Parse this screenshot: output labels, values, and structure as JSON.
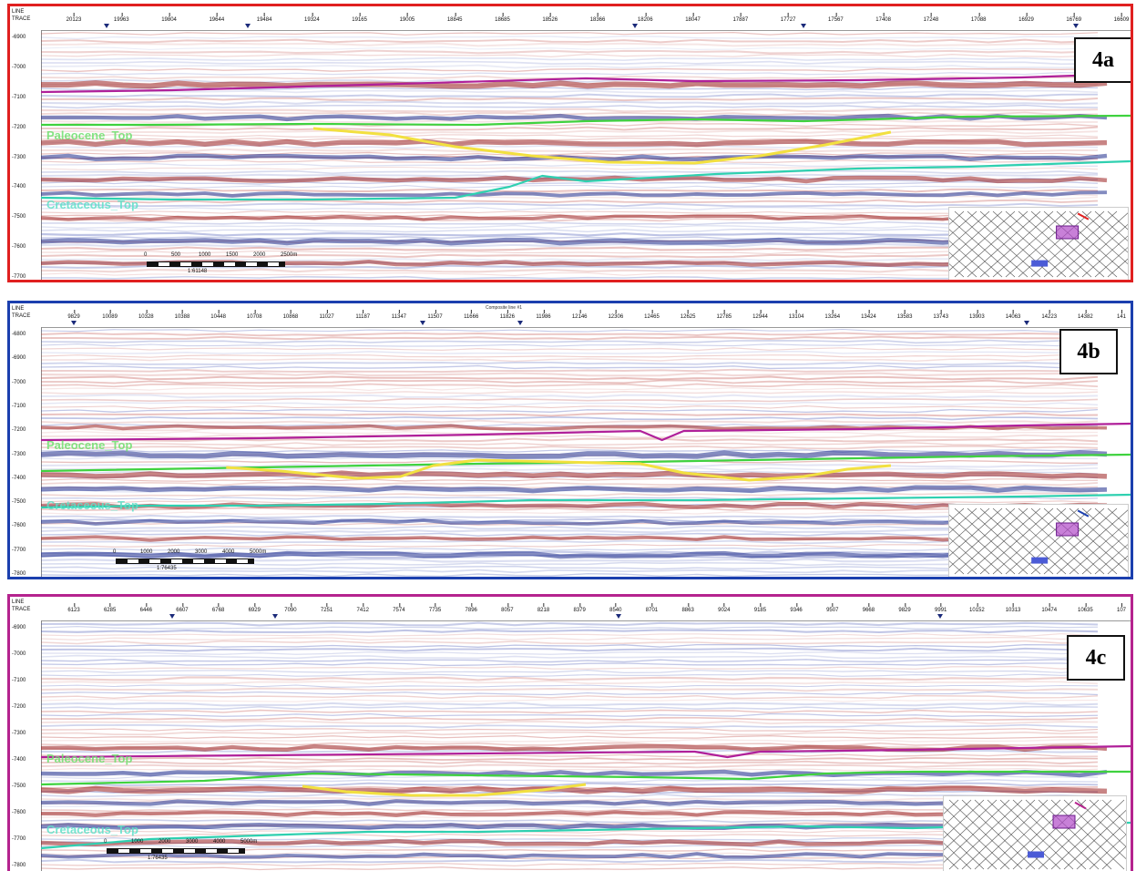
{
  "panels": [
    {
      "id": "a",
      "tag": "4a",
      "frame_color": "#e02020",
      "header": {
        "line_label": "LINE",
        "trace_label": "TRACE",
        "ticks": [
          "20123",
          "19963",
          "19804",
          "19644",
          "19484",
          "19324",
          "19165",
          "19005",
          "18845",
          "18685",
          "18526",
          "18366",
          "18206",
          "18047",
          "17887",
          "17727",
          "17567",
          "17408",
          "17248",
          "17088",
          "16929",
          "16769",
          "16609"
        ]
      },
      "y_ticks": [
        "-6900",
        "-7000",
        "-7100",
        "-7200",
        "-7300",
        "-7400",
        "-7500",
        "-7600",
        "-7700"
      ],
      "horizon_labels": [
        {
          "text": "Paleocene_Top",
          "color": "#6fe06f"
        },
        {
          "text": "Cretaceous_Top",
          "color": "#5fe0c8"
        }
      ],
      "scale": {
        "ticks": [
          "0",
          "500",
          "1000",
          "1500",
          "2000",
          "2500m"
        ],
        "ratio": "1:61148"
      },
      "horizon_colors": {
        "top": "#b0209a",
        "paleocene": "#3fd23f",
        "channel": "#f2e040",
        "cretaceous": "#2fd0b0"
      }
    },
    {
      "id": "b",
      "tag": "4b",
      "frame_color": "#1b3fae",
      "header": {
        "line_label": "LINE",
        "trace_label": "TRACE",
        "ticks": [
          "9829",
          "10089",
          "10328",
          "10388",
          "10448",
          "10708",
          "10868",
          "11027",
          "11187",
          "11347",
          "11507",
          "11666",
          "11826",
          "11986",
          "12146",
          "12306",
          "12465",
          "12625",
          "12785",
          "12944",
          "13104",
          "13264",
          "13424",
          "13583",
          "13743",
          "13903",
          "14063",
          "14223",
          "14382",
          "141"
        ],
        "note": "Composite line #1"
      },
      "y_ticks": [
        "-6800",
        "-6900",
        "-7000",
        "-7100",
        "-7200",
        "-7300",
        "-7400",
        "-7500",
        "-7600",
        "-7700",
        "-7800"
      ],
      "horizon_labels": [
        {
          "text": "Paleocene_Top",
          "color": "#6fe06f"
        },
        {
          "text": "Cretaceous_Top",
          "color": "#5fe0c8"
        }
      ],
      "scale": {
        "ticks": [
          "0",
          "1000",
          "2000",
          "3000",
          "4000",
          "5000m"
        ],
        "ratio": "1:76435"
      },
      "horizon_colors": {
        "top": "#b0209a",
        "paleocene": "#3fd23f",
        "channel": "#f2e040",
        "cretaceous": "#2fd0b0"
      }
    },
    {
      "id": "c",
      "tag": "4c",
      "frame_color": "#b5238e",
      "header": {
        "line_label": "LINE",
        "trace_label": "TRACE",
        "ticks": [
          "6123",
          "6285",
          "6446",
          "6607",
          "6768",
          "6929",
          "7090",
          "7251",
          "7412",
          "7574",
          "7735",
          "7896",
          "8057",
          "8218",
          "8379",
          "8540",
          "8701",
          "8863",
          "9024",
          "9185",
          "9346",
          "9507",
          "9668",
          "9829",
          "9991",
          "10152",
          "10313",
          "10474",
          "10635",
          "107"
        ]
      },
      "y_ticks": [
        "-6900",
        "-7000",
        "-7100",
        "-7200",
        "-7300",
        "-7400",
        "-7500",
        "-7600",
        "-7700",
        "-7800"
      ],
      "horizon_labels": [
        {
          "text": "Paleocene_Top",
          "color": "#6fe06f"
        },
        {
          "text": "Cretaceous_Top",
          "color": "#5fe0c8"
        }
      ],
      "scale": {
        "ticks": [
          "0",
          "1000",
          "2000",
          "3000",
          "4000",
          "5000m"
        ],
        "ratio": "1:76435"
      },
      "horizon_colors": {
        "top": "#b0209a",
        "paleocene": "#3fd23f",
        "channel": "#f2e040",
        "cretaceous": "#2fd0b0"
      }
    }
  ]
}
